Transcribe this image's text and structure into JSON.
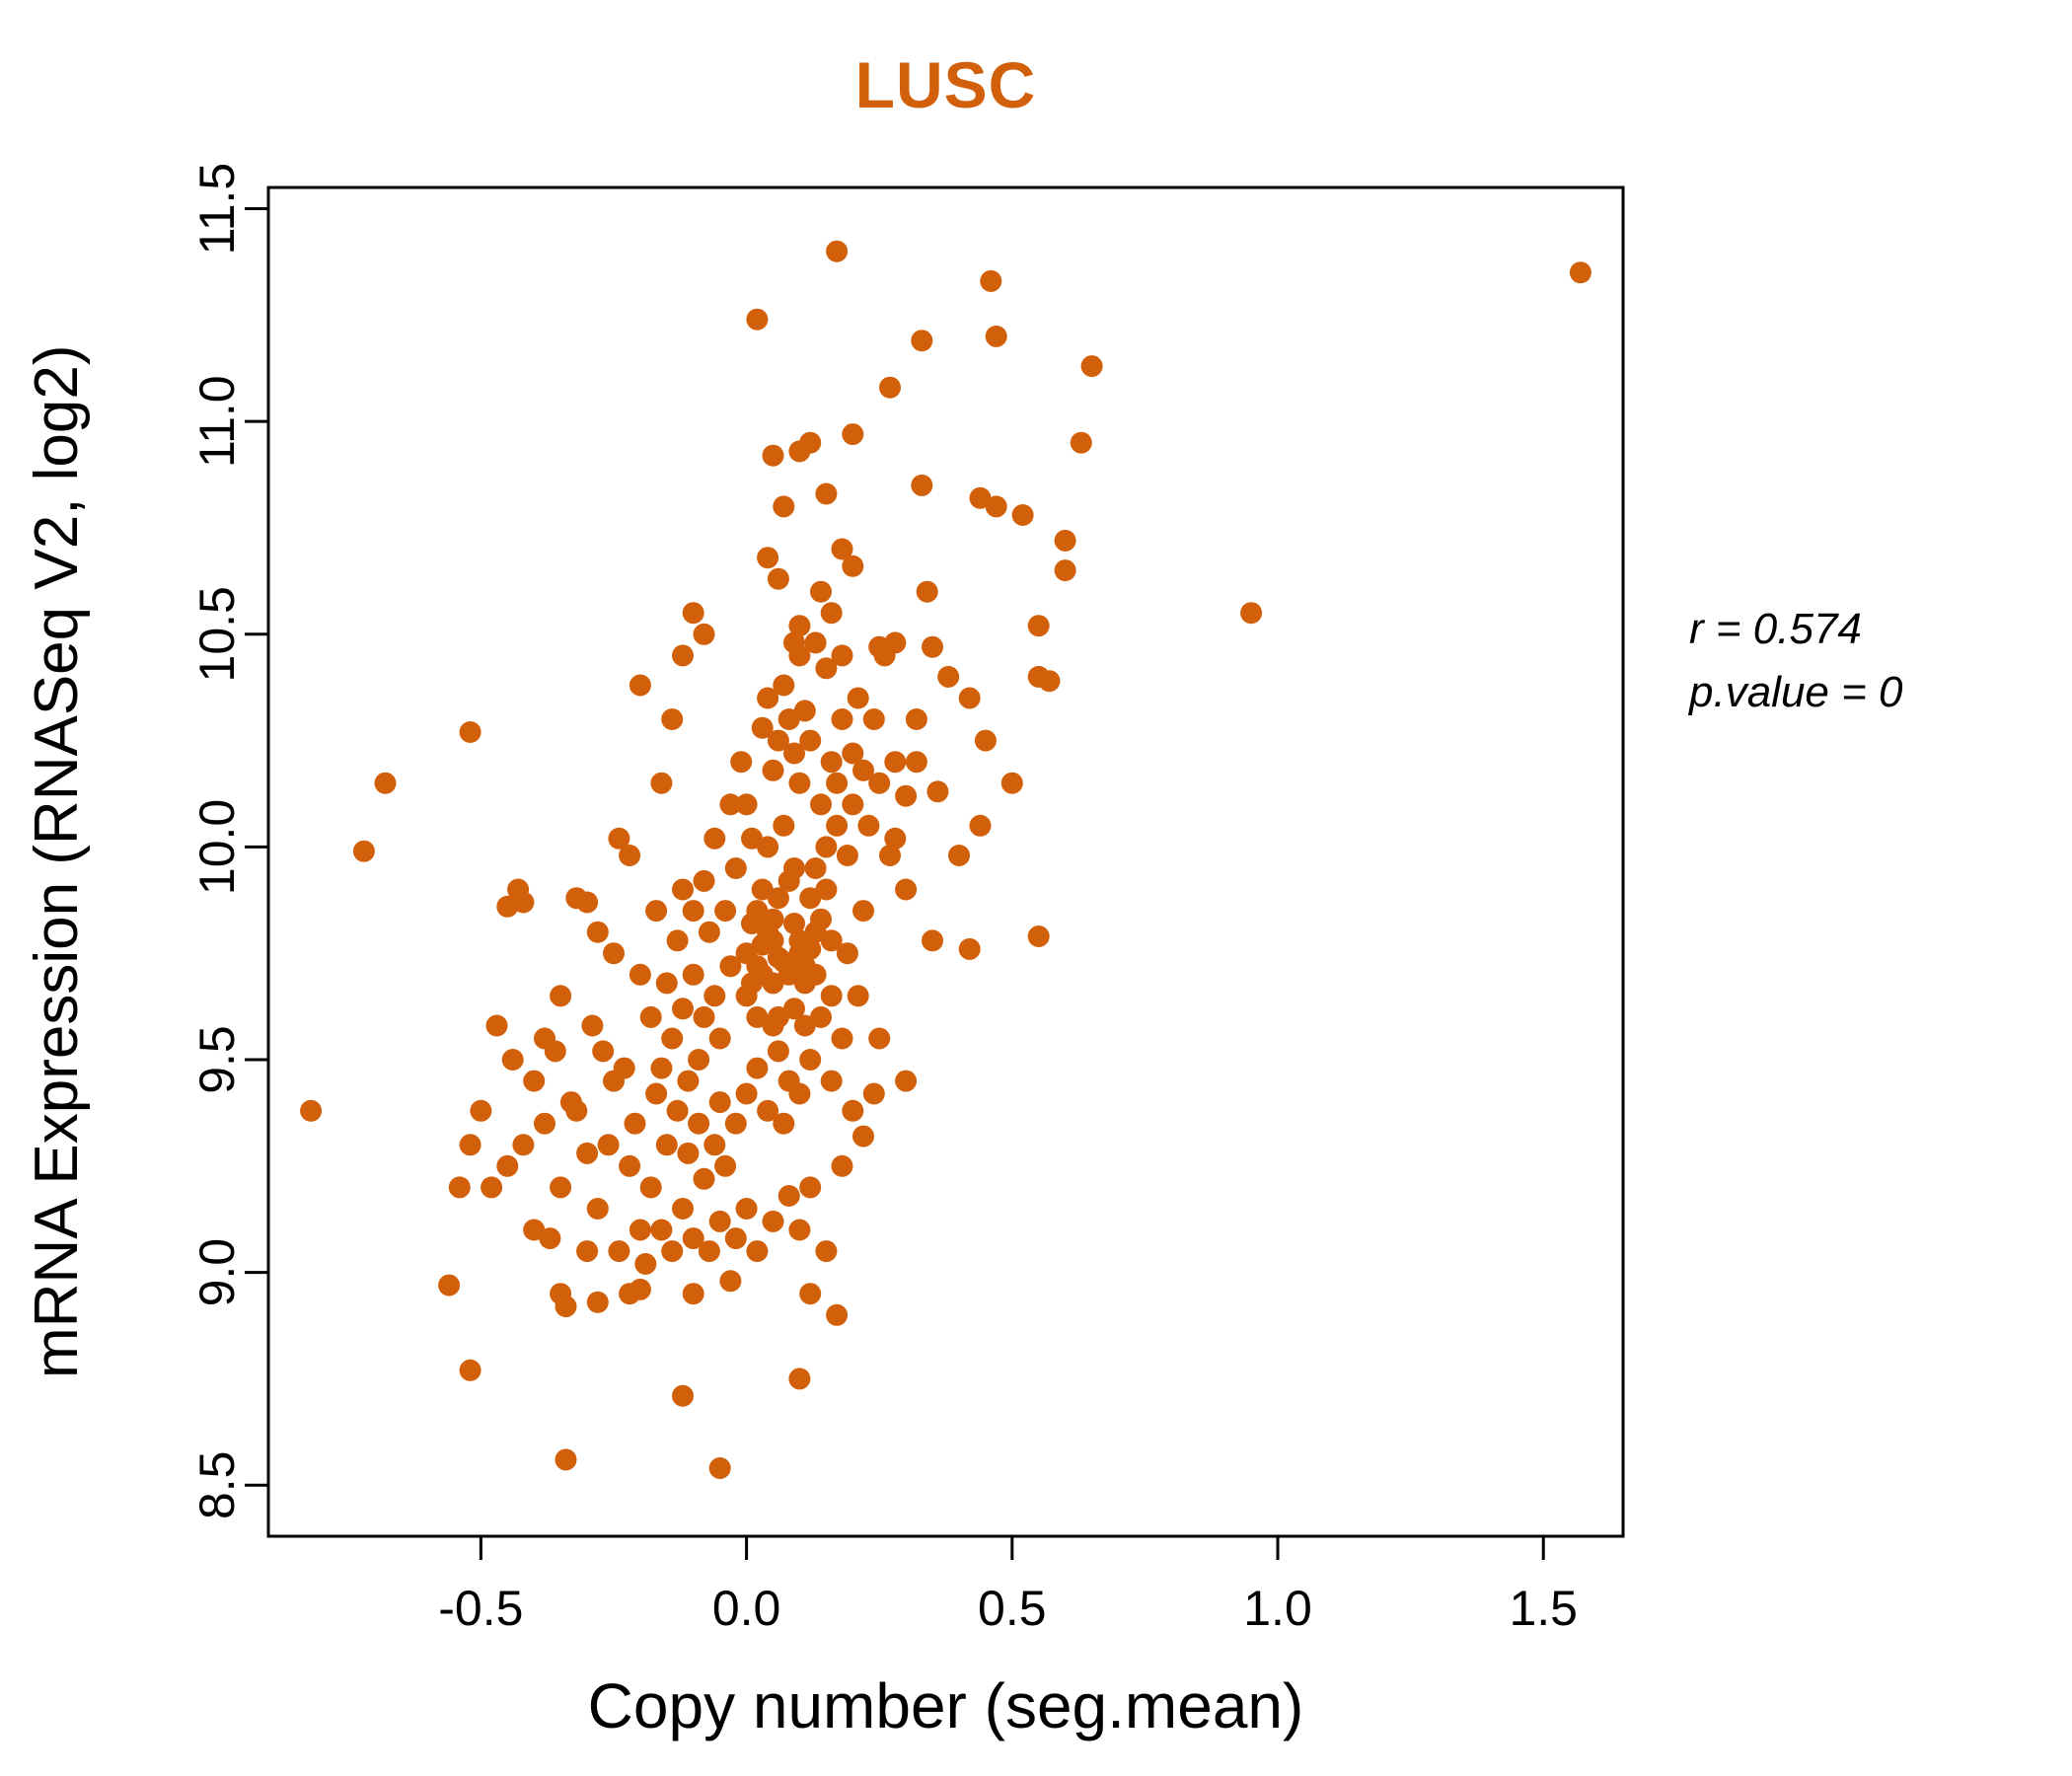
{
  "title": "LUSC",
  "annotation": {
    "line1": "r = 0.574",
    "line2": "p.value = 0"
  },
  "chart_data": {
    "type": "scatter",
    "title": "LUSC",
    "title_color": "#D2600A",
    "point_color": "#D2600A",
    "xlabel": "Copy number (seg.mean)",
    "ylabel": "mRNA Expression (RNASeq V2, log2)",
    "xlim": [
      -0.9,
      1.65
    ],
    "ylim": [
      8.38,
      11.55
    ],
    "xticks": [
      -0.5,
      0.0,
      0.5,
      1.0,
      1.5
    ],
    "xtick_labels": [
      "-0.5",
      "0.0",
      "0.5",
      "1.0",
      "1.5"
    ],
    "yticks": [
      8.5,
      9.0,
      9.5,
      10.0,
      10.5,
      11.0,
      11.5
    ],
    "ytick_labels": [
      "8.5",
      "9.0",
      "9.5",
      "10.0",
      "10.5",
      "11.0",
      "11.5"
    ],
    "grid": false,
    "legend": "none",
    "stats": {
      "r": 0.574,
      "p_value": 0
    },
    "points": [
      [
        0.02,
        9.85
      ],
      [
        0.05,
        9.78
      ],
      [
        0.08,
        9.92
      ],
      [
        0.0,
        9.65
      ],
      [
        0.03,
        9.7
      ],
      [
        0.06,
        9.6
      ],
      [
        0.1,
        9.75
      ],
      [
        0.12,
        9.88
      ],
      [
        0.04,
        10.0
      ],
      [
        0.07,
        10.05
      ],
      [
        0.09,
        9.95
      ],
      [
        0.01,
        9.82
      ],
      [
        0.05,
        9.58
      ],
      [
        0.11,
        9.68
      ],
      [
        0.13,
        9.8
      ],
      [
        0.02,
        9.48
      ],
      [
        0.06,
        9.52
      ],
      [
        0.08,
        9.45
      ],
      [
        0.15,
        9.9
      ],
      [
        0.14,
        10.1
      ],
      [
        0.16,
        10.2
      ],
      [
        0.1,
        10.15
      ],
      [
        0.05,
        10.18
      ],
      [
        0.03,
        10.28
      ],
      [
        0.08,
        10.3
      ],
      [
        0.12,
        10.25
      ],
      [
        0.18,
        10.3
      ],
      [
        0.2,
        10.22
      ],
      [
        0.22,
        10.18
      ],
      [
        0.17,
        10.05
      ],
      [
        0.19,
        9.98
      ],
      [
        0.21,
        10.35
      ],
      [
        0.15,
        10.42
      ],
      [
        0.1,
        10.45
      ],
      [
        0.07,
        10.38
      ],
      [
        0.13,
        10.48
      ],
      [
        0.18,
        10.45
      ],
      [
        0.09,
        10.48
      ],
      [
        0.04,
        10.35
      ],
      [
        0.0,
        10.1
      ],
      [
        -0.02,
        9.95
      ],
      [
        -0.04,
        9.85
      ],
      [
        -0.03,
        9.72
      ],
      [
        -0.06,
        9.65
      ],
      [
        -0.05,
        9.55
      ],
      [
        -0.08,
        9.6
      ],
      [
        -0.1,
        9.7
      ],
      [
        -0.07,
        9.8
      ],
      [
        -0.12,
        9.62
      ],
      [
        -0.09,
        9.5
      ],
      [
        -0.11,
        9.45
      ],
      [
        -0.05,
        9.4
      ],
      [
        -0.02,
        9.35
      ],
      [
        0.0,
        9.42
      ],
      [
        0.04,
        9.38
      ],
      [
        0.07,
        9.35
      ],
      [
        0.1,
        9.42
      ],
      [
        0.12,
        9.5
      ],
      [
        0.14,
        9.6
      ],
      [
        0.16,
        9.65
      ],
      [
        0.02,
        9.6
      ],
      [
        0.05,
        9.68
      ],
      [
        0.09,
        9.62
      ],
      [
        0.11,
        9.58
      ],
      [
        0.03,
        9.9
      ],
      [
        0.06,
        9.88
      ],
      [
        0.01,
        10.02
      ],
      [
        0.13,
        9.95
      ],
      [
        0.15,
        10.0
      ],
      [
        0.17,
        10.15
      ],
      [
        0.2,
        10.1
      ],
      [
        0.23,
        10.05
      ],
      [
        0.25,
        10.15
      ],
      [
        0.24,
        10.3
      ],
      [
        0.26,
        10.45
      ],
      [
        0.28,
        10.2
      ],
      [
        0.3,
        10.12
      ],
      [
        0.32,
        10.3
      ],
      [
        0.35,
        10.47
      ],
      [
        0.27,
        9.98
      ],
      [
        0.3,
        9.9
      ],
      [
        0.22,
        9.85
      ],
      [
        0.19,
        9.75
      ],
      [
        0.21,
        9.65
      ],
      [
        0.18,
        9.55
      ],
      [
        0.16,
        9.45
      ],
      [
        0.2,
        9.38
      ],
      [
        0.24,
        9.42
      ],
      [
        0.09,
        10.22
      ],
      [
        0.11,
        10.32
      ],
      [
        0.06,
        10.25
      ],
      [
        -0.01,
        10.2
      ],
      [
        -0.03,
        10.1
      ],
      [
        -0.06,
        10.02
      ],
      [
        -0.08,
        9.92
      ],
      [
        -0.1,
        9.85
      ],
      [
        -0.13,
        9.78
      ],
      [
        -0.15,
        9.68
      ],
      [
        -0.14,
        9.55
      ],
      [
        -0.16,
        9.48
      ],
      [
        -0.18,
        9.6
      ],
      [
        -0.2,
        9.7
      ],
      [
        -0.17,
        9.85
      ],
      [
        -0.12,
        9.9
      ],
      [
        0.0,
        9.75
      ],
      [
        0.02,
        9.72
      ],
      [
        0.04,
        9.8
      ],
      [
        0.07,
        9.73
      ],
      [
        0.1,
        9.78
      ],
      [
        0.08,
        9.7
      ],
      [
        0.05,
        9.83
      ],
      [
        0.03,
        9.77
      ],
      [
        0.06,
        9.74
      ],
      [
        0.01,
        9.68
      ],
      [
        0.09,
        9.82
      ],
      [
        0.12,
        9.76
      ],
      [
        0.11,
        9.72
      ],
      [
        0.13,
        9.7
      ],
      [
        0.14,
        9.83
      ],
      [
        0.16,
        9.78
      ],
      [
        -0.5,
        9.38
      ],
      [
        -0.45,
        9.25
      ],
      [
        -0.42,
        9.3
      ],
      [
        -0.4,
        9.45
      ],
      [
        -0.38,
        9.35
      ],
      [
        -0.35,
        9.2
      ],
      [
        -0.33,
        9.4
      ],
      [
        -0.3,
        9.28
      ],
      [
        -0.28,
        9.15
      ],
      [
        -0.26,
        9.3
      ],
      [
        -0.25,
        9.45
      ],
      [
        -0.22,
        9.25
      ],
      [
        -0.2,
        9.1
      ],
      [
        -0.18,
        9.2
      ],
      [
        -0.3,
        9.05
      ],
      [
        -0.35,
        8.95
      ],
      [
        -0.32,
        9.38
      ],
      [
        -0.24,
        9.05
      ],
      [
        -0.22,
        8.95
      ],
      [
        -0.19,
        9.02
      ],
      [
        -0.16,
        9.1
      ],
      [
        -0.14,
        9.05
      ],
      [
        -0.12,
        9.15
      ],
      [
        -0.1,
        9.08
      ],
      [
        -0.08,
        9.22
      ],
      [
        -0.15,
        9.3
      ],
      [
        -0.13,
        9.38
      ],
      [
        -0.11,
        9.28
      ],
      [
        -0.09,
        9.35
      ],
      [
        -0.06,
        9.3
      ],
      [
        -0.04,
        9.25
      ],
      [
        -0.05,
        9.12
      ],
      [
        -0.07,
        9.05
      ],
      [
        -0.03,
        8.98
      ],
      [
        -0.02,
        9.08
      ],
      [
        0.0,
        9.15
      ],
      [
        -0.17,
        9.42
      ],
      [
        -0.21,
        9.35
      ],
      [
        -0.23,
        9.48
      ],
      [
        -0.27,
        9.52
      ],
      [
        -0.29,
        9.58
      ],
      [
        -0.36,
        9.52
      ],
      [
        -0.44,
        9.5
      ],
      [
        -0.48,
        9.2
      ],
      [
        -0.52,
        9.3
      ],
      [
        -0.4,
        9.1
      ],
      [
        -0.37,
        9.08
      ],
      [
        -0.34,
        8.92
      ],
      [
        -0.28,
        8.93
      ],
      [
        -0.2,
        8.96
      ],
      [
        -0.1,
        8.95
      ],
      [
        0.02,
        9.05
      ],
      [
        0.05,
        9.12
      ],
      [
        0.08,
        9.18
      ],
      [
        0.1,
        9.1
      ],
      [
        0.12,
        9.2
      ],
      [
        0.17,
        11.4
      ],
      [
        0.46,
        11.33
      ],
      [
        0.02,
        11.24
      ],
      [
        0.33,
        11.19
      ],
      [
        0.47,
        11.2
      ],
      [
        0.65,
        11.13
      ],
      [
        0.27,
        11.08
      ],
      [
        0.2,
        10.97
      ],
      [
        0.1,
        10.93
      ],
      [
        0.05,
        10.92
      ],
      [
        0.12,
        10.95
      ],
      [
        0.63,
        10.95
      ],
      [
        0.33,
        10.85
      ],
      [
        0.15,
        10.83
      ],
      [
        0.07,
        10.8
      ],
      [
        0.44,
        10.82
      ],
      [
        0.47,
        10.8
      ],
      [
        0.52,
        10.78
      ],
      [
        0.6,
        10.72
      ],
      [
        0.6,
        10.65
      ],
      [
        0.18,
        10.7
      ],
      [
        0.2,
        10.66
      ],
      [
        0.04,
        10.68
      ],
      [
        0.06,
        10.63
      ],
      [
        0.14,
        10.6
      ],
      [
        0.16,
        10.55
      ],
      [
        0.1,
        10.52
      ],
      [
        -0.08,
        10.5
      ],
      [
        -0.1,
        10.55
      ],
      [
        0.95,
        10.55
      ],
      [
        0.55,
        10.52
      ],
      [
        0.34,
        10.6
      ],
      [
        0.57,
        10.39
      ],
      [
        0.28,
        10.48
      ],
      [
        0.25,
        10.47
      ],
      [
        -0.82,
        9.38
      ],
      [
        -0.72,
        9.99
      ],
      [
        -0.68,
        10.15
      ],
      [
        -0.52,
        10.27
      ],
      [
        1.57,
        11.35
      ],
      [
        -0.05,
        8.54
      ],
      [
        -0.34,
        8.56
      ],
      [
        -0.12,
        8.71
      ],
      [
        0.1,
        8.75
      ],
      [
        -0.52,
        8.77
      ],
      [
        -0.56,
        8.97
      ],
      [
        -0.54,
        9.2
      ],
      [
        -0.47,
        9.58
      ],
      [
        -0.43,
        9.9
      ],
      [
        -0.45,
        9.86
      ],
      [
        -0.42,
        9.87
      ],
      [
        -0.32,
        9.88
      ],
      [
        -0.3,
        9.87
      ],
      [
        -0.22,
        9.98
      ],
      [
        -0.2,
        10.38
      ],
      [
        -0.12,
        10.45
      ],
      [
        -0.14,
        10.3
      ],
      [
        -0.16,
        10.15
      ],
      [
        -0.24,
        10.02
      ],
      [
        -0.35,
        9.65
      ],
      [
        0.35,
        9.78
      ],
      [
        0.42,
        9.76
      ],
      [
        0.55,
        9.79
      ],
      [
        0.45,
        10.25
      ],
      [
        0.5,
        10.15
      ],
      [
        0.42,
        10.35
      ],
      [
        0.38,
        10.4
      ],
      [
        0.36,
        10.13
      ],
      [
        0.4,
        9.98
      ],
      [
        0.44,
        10.05
      ],
      [
        0.55,
        10.4
      ],
      [
        0.18,
        9.25
      ],
      [
        0.22,
        9.32
      ],
      [
        0.15,
        9.05
      ],
      [
        0.12,
        8.95
      ],
      [
        0.25,
        9.55
      ],
      [
        0.3,
        9.45
      ],
      [
        0.17,
        8.9
      ],
      [
        -0.25,
        9.75
      ],
      [
        -0.28,
        9.8
      ],
      [
        -0.38,
        9.55
      ],
      [
        0.28,
        10.02
      ],
      [
        0.32,
        10.2
      ]
    ]
  }
}
